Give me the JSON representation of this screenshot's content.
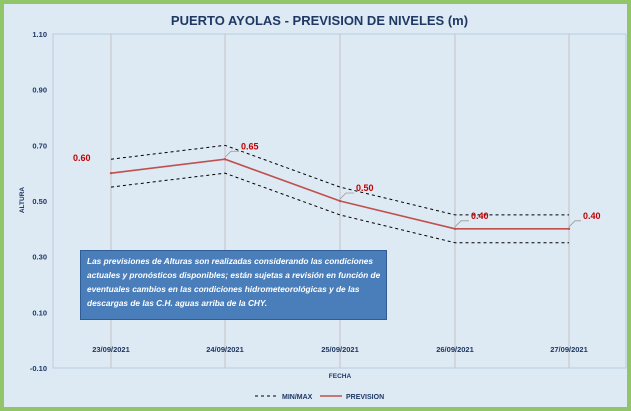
{
  "chart_data": {
    "type": "line",
    "title": "PUERTO AYOLAS - PREVISION DE NIVELES (m)",
    "xlabel": "FECHA",
    "ylabel": "ALTURA",
    "ylim": [
      -0.1,
      1.1
    ],
    "yticks": [
      "1.10",
      "0.90",
      "0.70",
      "0.50",
      "0.30",
      "0.10",
      "-0.10"
    ],
    "ytick_values": [
      1.1,
      0.9,
      0.7,
      0.5,
      0.3,
      0.1,
      -0.1
    ],
    "categories": [
      "23/09/2021",
      "24/09/2021",
      "25/09/2021",
      "26/09/2021",
      "27/09/2021"
    ],
    "series": [
      {
        "name": "PREVISION",
        "values": [
          0.6,
          0.65,
          0.5,
          0.4,
          0.4
        ],
        "color": "#c0504d"
      },
      {
        "name": "MIN/MAX",
        "upper": [
          0.65,
          0.7,
          0.55,
          0.45,
          0.45
        ],
        "lower": [
          0.55,
          0.6,
          0.45,
          0.35,
          0.35
        ],
        "color": "#000000"
      }
    ],
    "data_labels": [
      "0.60",
      "0.65",
      "0.50",
      "0.40",
      "0.40"
    ],
    "legend": [
      "MIN/MAX",
      "PREVISION"
    ],
    "grid": "vertical",
    "note": "Las previsiones de Alturas son realizadas considerando las condiciones actuales y pronósticos disponibles;  están sujetas a revisión en función de eventuales cambios en las condiciones hidrometeorológicas y de las descargas de las C.H. aguas arriba de la CHY."
  }
}
